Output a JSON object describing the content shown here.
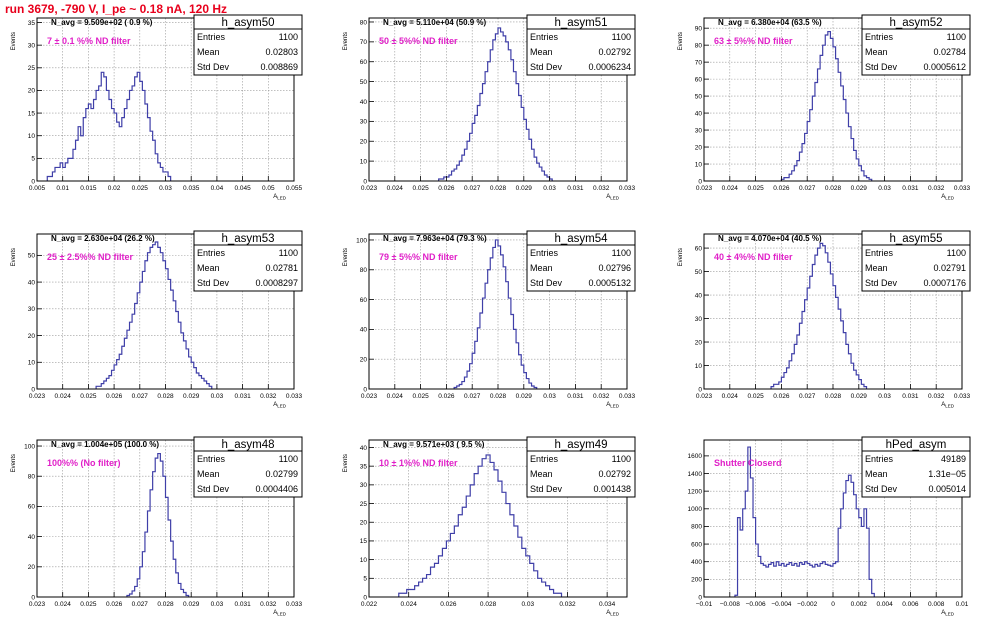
{
  "title": "run 3679,  -790 V, I_pe ~ 0.18 nA, 120 Hz",
  "stat_keys": {
    "entries": "Entries",
    "mean": "Mean",
    "std": "Std Dev"
  },
  "colors": {
    "histogram": "#3f3fa8",
    "title": "#e8001c",
    "annotation": "#e020c8",
    "grid": "#9a9a9a"
  },
  "chart_data": [
    {
      "type": "histogram",
      "name": "h_asym50",
      "entries": "1100",
      "mean": "0.02803",
      "std": "0.008869",
      "navg": "N_avg = 9.509e+02 ( 0.9 %)",
      "annotation": "7 ± 0.1 %% ND filter",
      "ylabel": "Events",
      "xlabel": "A",
      "xlabel_sub": "LED",
      "xlim": [
        0.005,
        0.055
      ],
      "ylim": [
        0,
        36
      ],
      "xticks": [
        0.005,
        0.01,
        0.015,
        0.02,
        0.025,
        0.03,
        0.035,
        0.04,
        0.045,
        0.05,
        0.055
      ],
      "xticklabels": [
        "0.005",
        "0.01",
        "0.015",
        "0.02",
        "0.025",
        "0.03",
        "0.035",
        "0.04",
        "0.045",
        "0.05",
        "0.055"
      ],
      "yticks": [
        0,
        5,
        10,
        15,
        20,
        25,
        30,
        35
      ],
      "yticklabels": [
        "0",
        "5",
        "10",
        "15",
        "20",
        "25",
        "30",
        "35"
      ],
      "grid": true,
      "bin_start": 0.007,
      "bin_width": 0.0005,
      "values": [
        1,
        1,
        2,
        3,
        3,
        4,
        3,
        4,
        5,
        5,
        7,
        9,
        12,
        10,
        14,
        16,
        17,
        16,
        18,
        20,
        21,
        24,
        23,
        20,
        18,
        16,
        15,
        13,
        12,
        14,
        16,
        18,
        20,
        21,
        23,
        24,
        22,
        20,
        17,
        14,
        11,
        9,
        6,
        4,
        3,
        2,
        2,
        1
      ]
    },
    {
      "type": "histogram",
      "name": "h_asym51",
      "entries": "1100",
      "mean": "0.02792",
      "std": "0.0006234",
      "navg": "N_avg = 5.110e+04 (50.9 %)",
      "annotation": "50 ± 5%% ND filter",
      "ylabel": "Events",
      "xlabel": "A",
      "xlabel_sub": "LED",
      "xlim": [
        0.023,
        0.033
      ],
      "ylim": [
        0,
        82
      ],
      "xticks": [
        0.023,
        0.024,
        0.025,
        0.026,
        0.027,
        0.028,
        0.029,
        0.03,
        0.031,
        0.032,
        0.033
      ],
      "xticklabels": [
        "0.023",
        "0.024",
        "0.025",
        "0.026",
        "0.027",
        "0.028",
        "0.029",
        "0.03",
        "0.031",
        "0.032",
        "0.033"
      ],
      "yticks": [
        0,
        10,
        20,
        30,
        40,
        50,
        60,
        70,
        80
      ],
      "yticklabels": [
        "0",
        "10",
        "20",
        "30",
        "40",
        "50",
        "60",
        "70",
        "80"
      ],
      "grid": true,
      "bin_start": 0.0257,
      "bin_width": 0.0001,
      "values": [
        1,
        1,
        2,
        2,
        3,
        5,
        6,
        8,
        10,
        13,
        16,
        20,
        24,
        29,
        33,
        38,
        44,
        49,
        55,
        60,
        66,
        71,
        74,
        77,
        75,
        73,
        70,
        66,
        61,
        55,
        49,
        43,
        37,
        31,
        26,
        21,
        16,
        12,
        9,
        7,
        5,
        3,
        2,
        1
      ]
    },
    {
      "type": "histogram",
      "name": "h_asym52",
      "entries": "1100",
      "mean": "0.02784",
      "std": "0.0005612",
      "navg": "N_avg = 6.380e+04 (63.5 %)",
      "annotation": "63 ± 5%% ND filter",
      "ylabel": "Events",
      "xlabel": "A",
      "xlabel_sub": "LED",
      "xlim": [
        0.023,
        0.033
      ],
      "ylim": [
        0,
        96
      ],
      "xticks": [
        0.023,
        0.024,
        0.025,
        0.026,
        0.027,
        0.028,
        0.029,
        0.03,
        0.031,
        0.032,
        0.033
      ],
      "xticklabels": [
        "0.023",
        "0.024",
        "0.025",
        "0.026",
        "0.027",
        "0.028",
        "0.029",
        "0.03",
        "0.031",
        "0.032",
        "0.033"
      ],
      "yticks": [
        0,
        10,
        20,
        30,
        40,
        50,
        60,
        70,
        80,
        90
      ],
      "yticklabels": [
        "0",
        "10",
        "20",
        "30",
        "40",
        "50",
        "60",
        "70",
        "80",
        "90"
      ],
      "grid": true,
      "bin_start": 0.026,
      "bin_width": 0.0001,
      "values": [
        1,
        2,
        2,
        4,
        6,
        9,
        12,
        17,
        22,
        28,
        35,
        42,
        50,
        58,
        66,
        74,
        80,
        86,
        88,
        84,
        79,
        72,
        64,
        56,
        48,
        40,
        32,
        25,
        18,
        13,
        9,
        6,
        3,
        2,
        1
      ]
    },
    {
      "type": "histogram",
      "name": "h_asym53",
      "entries": "1100",
      "mean": "0.02781",
      "std": "0.0008297",
      "navg": "N_avg = 2.630e+04 (26.2 %)",
      "annotation": "25 ± 2.5%% ND filter",
      "ylabel": "Events",
      "xlabel": "A",
      "xlabel_sub": "LED",
      "xlim": [
        0.023,
        0.033
      ],
      "ylim": [
        0,
        58
      ],
      "xticks": [
        0.023,
        0.024,
        0.025,
        0.026,
        0.027,
        0.028,
        0.029,
        0.03,
        0.031,
        0.032,
        0.033
      ],
      "xticklabels": [
        "0.023",
        "0.024",
        "0.025",
        "0.026",
        "0.027",
        "0.028",
        "0.029",
        "0.03",
        "0.031",
        "0.032",
        "0.033"
      ],
      "yticks": [
        0,
        10,
        20,
        30,
        40,
        50
      ],
      "yticklabels": [
        "0",
        "10",
        "20",
        "30",
        "40",
        "50"
      ],
      "grid": true,
      "bin_start": 0.0253,
      "bin_width": 0.0001,
      "values": [
        1,
        1,
        2,
        3,
        4,
        5,
        7,
        9,
        11,
        13,
        16,
        19,
        22,
        25,
        28,
        32,
        36,
        40,
        44,
        48,
        51,
        53,
        54,
        55,
        53,
        51,
        48,
        45,
        41,
        37,
        33,
        29,
        25,
        21,
        18,
        15,
        12,
        10,
        8,
        6,
        5,
        4,
        3,
        2,
        1
      ]
    },
    {
      "type": "histogram",
      "name": "h_asym54",
      "entries": "1100",
      "mean": "0.02796",
      "std": "0.0005132",
      "navg": "N_avg = 7.963e+04 (79.3 %)",
      "annotation": "79 ± 5%% ND filter",
      "ylabel": "Events",
      "xlabel": "A",
      "xlabel_sub": "LED",
      "xlim": [
        0.023,
        0.033
      ],
      "ylim": [
        0,
        104
      ],
      "xticks": [
        0.023,
        0.024,
        0.025,
        0.026,
        0.027,
        0.028,
        0.029,
        0.03,
        0.031,
        0.032,
        0.033
      ],
      "xticklabels": [
        "0.023",
        "0.024",
        "0.025",
        "0.026",
        "0.027",
        "0.028",
        "0.029",
        "0.03",
        "0.031",
        "0.032",
        "0.033"
      ],
      "yticks": [
        0,
        20,
        40,
        60,
        80,
        100
      ],
      "yticklabels": [
        "0",
        "20",
        "40",
        "60",
        "80",
        "100"
      ],
      "grid": true,
      "bin_start": 0.0263,
      "bin_width": 0.0001,
      "values": [
        1,
        2,
        3,
        5,
        8,
        12,
        17,
        24,
        32,
        41,
        51,
        61,
        71,
        80,
        88,
        95,
        100,
        96,
        90,
        82,
        72,
        61,
        50,
        40,
        31,
        23,
        16,
        11,
        7,
        4,
        2,
        1
      ]
    },
    {
      "type": "histogram",
      "name": "h_asym55",
      "entries": "1100",
      "mean": "0.02791",
      "std": "0.0007176",
      "navg": "N_avg = 4.070e+04 (40.5 %)",
      "annotation": "40 ± 4%% ND filter",
      "ylabel": "Events",
      "xlabel": "A",
      "xlabel_sub": "LED",
      "xlim": [
        0.023,
        0.033
      ],
      "ylim": [
        0,
        66
      ],
      "xticks": [
        0.023,
        0.024,
        0.025,
        0.026,
        0.027,
        0.028,
        0.029,
        0.03,
        0.031,
        0.032,
        0.033
      ],
      "xticklabels": [
        "0.023",
        "0.024",
        "0.025",
        "0.026",
        "0.027",
        "0.028",
        "0.029",
        "0.03",
        "0.031",
        "0.032",
        "0.033"
      ],
      "yticks": [
        0,
        10,
        20,
        30,
        40,
        50,
        60
      ],
      "yticklabels": [
        "0",
        "10",
        "20",
        "30",
        "40",
        "50",
        "60"
      ],
      "grid": true,
      "bin_start": 0.0256,
      "bin_width": 0.0001,
      "values": [
        1,
        2,
        2,
        3,
        5,
        7,
        9,
        12,
        15,
        19,
        23,
        28,
        33,
        38,
        43,
        48,
        53,
        57,
        60,
        62,
        61,
        58,
        54,
        49,
        44,
        39,
        34,
        29,
        24,
        19,
        15,
        11,
        8,
        6,
        4,
        2,
        1
      ]
    },
    {
      "type": "histogram",
      "name": "h_asym48",
      "entries": "1100",
      "mean": "0.02799",
      "std": "0.0004406",
      "navg": "N_avg = 1.004e+05 (100.0 %)",
      "annotation": "100%% (No filter)",
      "ylabel": "Events",
      "xlabel": "A",
      "xlabel_sub": "LED",
      "xlim": [
        0.023,
        0.033
      ],
      "ylim": [
        0,
        104
      ],
      "xticks": [
        0.023,
        0.024,
        0.025,
        0.026,
        0.027,
        0.028,
        0.029,
        0.03,
        0.031,
        0.032,
        0.033
      ],
      "xticklabels": [
        "0.023",
        "0.024",
        "0.025",
        "0.026",
        "0.027",
        "0.028",
        "0.029",
        "0.03",
        "0.031",
        "0.032",
        "0.033"
      ],
      "yticks": [
        0,
        20,
        40,
        60,
        80,
        100
      ],
      "yticklabels": [
        "0",
        "20",
        "40",
        "60",
        "80",
        "100"
      ],
      "grid": true,
      "bin_start": 0.0265,
      "bin_width": 0.0001,
      "values": [
        1,
        2,
        4,
        7,
        12,
        20,
        30,
        43,
        57,
        71,
        83,
        92,
        95,
        90,
        80,
        66,
        51,
        37,
        25,
        16,
        9,
        5,
        3,
        1
      ]
    },
    {
      "type": "histogram",
      "name": "h_asym49",
      "entries": "1100",
      "mean": "0.02792",
      "std": "0.001438",
      "navg": "N_avg = 9.571e+03 ( 9.5 %)",
      "annotation": "10 ± 1%% ND filter",
      "ylabel": "Events",
      "xlabel": "A",
      "xlabel_sub": "LED",
      "xlim": [
        0.022,
        0.035
      ],
      "ylim": [
        0,
        42
      ],
      "xticks": [
        0.022,
        0.024,
        0.026,
        0.028,
        0.03,
        0.032,
        0.034
      ],
      "xticklabels": [
        "0.022",
        "0.024",
        "0.026",
        "0.028",
        "0.03",
        "0.032",
        "0.034"
      ],
      "yticks": [
        0,
        5,
        10,
        15,
        20,
        25,
        30,
        35,
        40
      ],
      "yticklabels": [
        "0",
        "5",
        "10",
        "15",
        "20",
        "25",
        "30",
        "35",
        "40"
      ],
      "grid": true,
      "bin_start": 0.0235,
      "bin_width": 0.0002,
      "values": [
        1,
        1,
        2,
        2,
        3,
        4,
        5,
        6,
        8,
        9,
        11,
        13,
        15,
        17,
        19,
        22,
        24,
        27,
        30,
        33,
        35,
        37,
        38,
        36,
        34,
        31,
        28,
        25,
        22,
        19,
        16,
        13,
        11,
        9,
        7,
        5,
        4,
        3,
        2,
        1,
        1
      ]
    },
    {
      "type": "histogram",
      "name": "hPed_asym",
      "entries": "49189",
      "mean": "1.31e−05",
      "std": "0.005014",
      "navg": "",
      "annotation": "Shutter Closerd",
      "ylabel": "",
      "xlabel": "A",
      "xlabel_sub": "LED",
      "xlim": [
        -0.01,
        0.01
      ],
      "ylim": [
        0,
        1780
      ],
      "xticks": [
        -0.01,
        -0.008,
        -0.006,
        -0.004,
        -0.002,
        0,
        0.002,
        0.004,
        0.006,
        0.008,
        0.01
      ],
      "xticklabels": [
        "−0.01",
        "−0.008",
        "−0.006",
        "−0.004",
        "−0.002",
        "0",
        "0.002",
        "0.004",
        "0.006",
        "0.008",
        "0.01"
      ],
      "yticks": [
        0,
        200,
        400,
        600,
        800,
        1000,
        1200,
        1400,
        1600
      ],
      "yticklabels": [
        "0",
        "200",
        "400",
        "600",
        "800",
        "1000",
        "1200",
        "1400",
        "1600"
      ],
      "grid": true,
      "bin_start": -0.0076,
      "bin_width": 0.0002,
      "values": [
        20,
        900,
        760,
        1000,
        1200,
        1700,
        1350,
        900,
        600,
        460,
        380,
        360,
        340,
        370,
        390,
        350,
        400,
        360,
        380,
        350,
        370,
        390,
        360,
        380,
        350,
        390,
        370,
        400,
        380,
        360,
        340,
        370,
        350,
        380,
        400,
        370,
        360,
        350,
        380,
        400,
        780,
        1000,
        1180,
        1320,
        1380,
        1300,
        1160,
        1000,
        900,
        800,
        1000,
        780,
        200,
        40
      ]
    }
  ]
}
